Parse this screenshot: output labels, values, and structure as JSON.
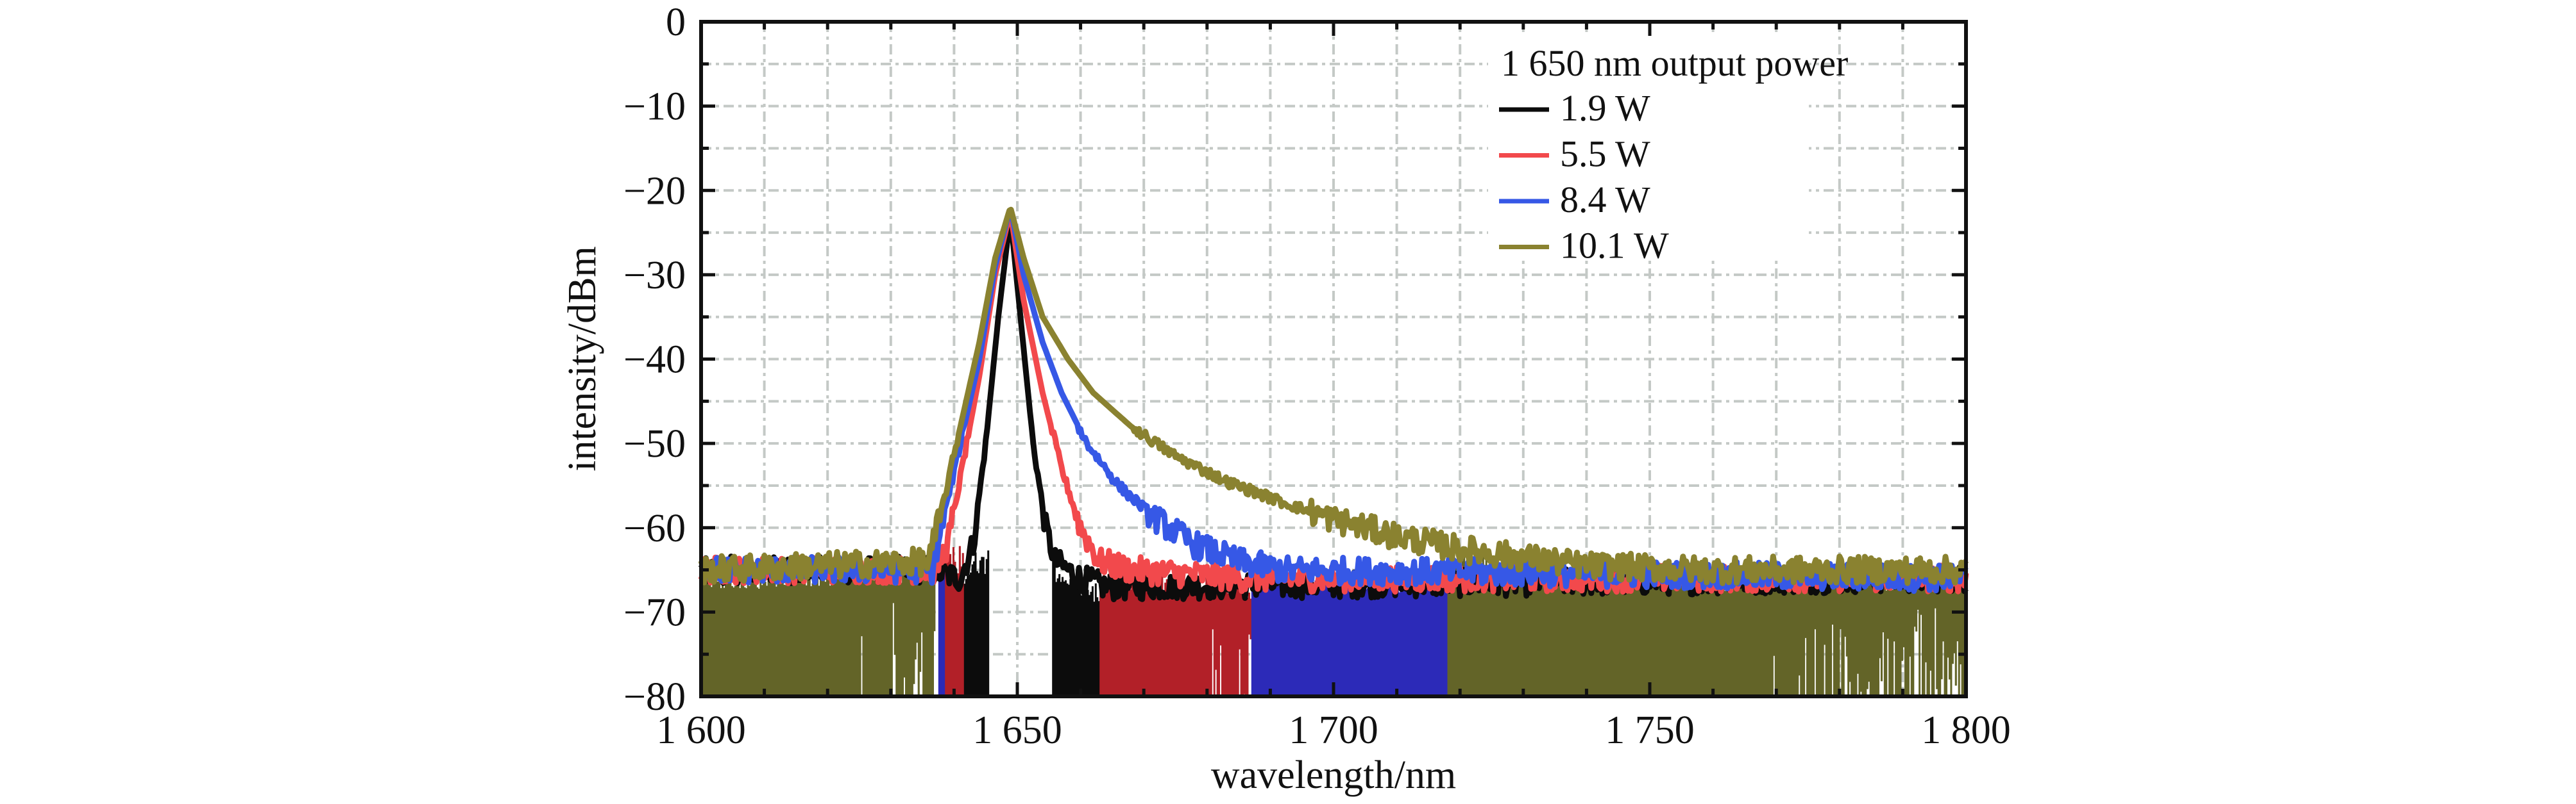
{
  "chart_data": {
    "type": "line",
    "title": "",
    "xlabel": "wavelength/nm",
    "ylabel": "intensity/dBm",
    "xlim": [
      1600,
      1800
    ],
    "ylim": [
      -80,
      0
    ],
    "grid": true,
    "x_major_ticks": [
      1600,
      1650,
      1700,
      1750,
      1800
    ],
    "x_tick_labels": [
      "1 600",
      "1 650",
      "1 700",
      "1 750",
      "1 800"
    ],
    "x_minor_step": 10,
    "y_major_ticks": [
      0,
      -10,
      -20,
      -30,
      -40,
      -50,
      -60,
      -70,
      -80
    ],
    "y_tick_labels": [
      "0",
      "−10",
      "−20",
      "−30",
      "−40",
      "−50",
      "−60",
      "−70",
      "−80"
    ],
    "y_minor_step": 5,
    "legend": {
      "title": "1 650 nm output power",
      "placement": "top-right"
    },
    "noise_floor_dbm": -65,
    "series": [
      {
        "name": "1.9 W",
        "color": "#0c0c0c",
        "fill_color": "#0c0c0c",
        "peak": [
          1648.9,
          -23
        ],
        "points": [
          [
            1600,
            -65
          ],
          [
            1636,
            -65
          ],
          [
            1641,
            -66
          ],
          [
            1643,
            -62
          ],
          [
            1645,
            -50
          ],
          [
            1647,
            -35
          ],
          [
            1648.9,
            -23
          ],
          [
            1650.5,
            -35
          ],
          [
            1652.5,
            -50
          ],
          [
            1654.5,
            -60
          ],
          [
            1656,
            -64
          ],
          [
            1660,
            -66
          ],
          [
            1664,
            -67
          ],
          [
            1800,
            -66
          ]
        ],
        "fill_ranges": [
          [
            1641.5,
            1645.5
          ],
          [
            1655.5,
            1664
          ]
        ]
      },
      {
        "name": "5.5 W",
        "color": "#f2494c",
        "fill_color": "#b22028",
        "peak": [
          1648.9,
          -22.5
        ],
        "points": [
          [
            1600,
            -65
          ],
          [
            1637,
            -65
          ],
          [
            1639,
            -62
          ],
          [
            1641,
            -54
          ],
          [
            1644,
            -42
          ],
          [
            1646.5,
            -30
          ],
          [
            1648.9,
            -22.5
          ],
          [
            1651,
            -33
          ],
          [
            1654,
            -44
          ],
          [
            1657,
            -53
          ],
          [
            1660,
            -60
          ],
          [
            1663,
            -64
          ],
          [
            1668,
            -65
          ],
          [
            1686,
            -66
          ],
          [
            1800,
            -66
          ]
        ],
        "fill_ranges": [
          [
            1638.5,
            1641.5
          ],
          [
            1663,
            1687
          ]
        ]
      },
      {
        "name": "8.4 W",
        "color": "#3658e6",
        "fill_color": "#2c2ab8",
        "peak": [
          1648.9,
          -22
        ],
        "points": [
          [
            1600,
            -65
          ],
          [
            1636.5,
            -65
          ],
          [
            1638,
            -60
          ],
          [
            1641,
            -50
          ],
          [
            1644,
            -40
          ],
          [
            1646.5,
            -29
          ],
          [
            1648.9,
            -22
          ],
          [
            1651,
            -30
          ],
          [
            1654,
            -38
          ],
          [
            1657,
            -44
          ],
          [
            1661,
            -50
          ],
          [
            1666,
            -55
          ],
          [
            1672,
            -59
          ],
          [
            1678,
            -62
          ],
          [
            1685,
            -64
          ],
          [
            1692,
            -65
          ],
          [
            1800,
            -66
          ]
        ],
        "fill_ranges": [
          [
            1637.5,
            1638.5
          ],
          [
            1687,
            1746
          ]
        ]
      },
      {
        "name": "10.1 W",
        "color": "#8a8230",
        "fill_color": "#636428",
        "peak": [
          1648.9,
          -22
        ],
        "points": [
          [
            1600,
            -65
          ],
          [
            1636,
            -64
          ],
          [
            1638,
            -58
          ],
          [
            1641,
            -48
          ],
          [
            1644,
            -38
          ],
          [
            1646.5,
            -28
          ],
          [
            1648.9,
            -22
          ],
          [
            1651,
            -28
          ],
          [
            1654,
            -35
          ],
          [
            1658,
            -40
          ],
          [
            1662,
            -44
          ],
          [
            1668,
            -48
          ],
          [
            1675,
            -51.5
          ],
          [
            1683,
            -54.5
          ],
          [
            1692,
            -57
          ],
          [
            1700,
            -59
          ],
          [
            1710,
            -61
          ],
          [
            1720,
            -62.5
          ],
          [
            1730,
            -63.5
          ],
          [
            1740,
            -64.5
          ],
          [
            1760,
            -65
          ],
          [
            1800,
            -65
          ]
        ],
        "fill_ranges": [
          [
            1600,
            1637
          ],
          [
            1718,
            1800
          ]
        ]
      }
    ]
  }
}
